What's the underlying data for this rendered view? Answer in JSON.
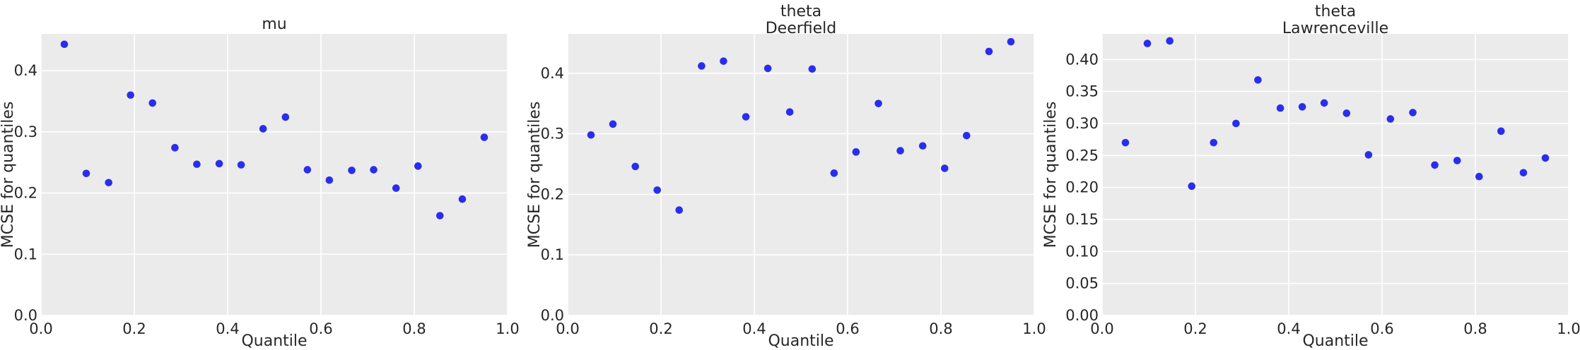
{
  "chart_data": [
    {
      "type": "scatter",
      "title": [
        "mu"
      ],
      "xlabel": "Quantile",
      "ylabel": "MCSE for quantiles",
      "xlim": [
        0,
        1
      ],
      "ylim": [
        0,
        0.46
      ],
      "xticks": [
        "0.0",
        "0.2",
        "0.4",
        "0.6",
        "0.8",
        "1.0"
      ],
      "yticks": [
        "0.0",
        "0.1",
        "0.2",
        "0.3",
        "0.4"
      ],
      "x": [
        0.05,
        0.097,
        0.145,
        0.192,
        0.239,
        0.287,
        0.334,
        0.382,
        0.429,
        0.476,
        0.524,
        0.571,
        0.618,
        0.666,
        0.713,
        0.761,
        0.808,
        0.855,
        0.903,
        0.95
      ],
      "y": [
        0.443,
        0.232,
        0.217,
        0.36,
        0.347,
        0.274,
        0.247,
        0.248,
        0.246,
        0.305,
        0.324,
        0.238,
        0.221,
        0.237,
        0.238,
        0.208,
        0.244,
        0.163,
        0.19,
        0.291
      ],
      "color": "#2a2eec",
      "grid": true
    },
    {
      "type": "scatter",
      "title": [
        "theta",
        "Deerfield"
      ],
      "xlabel": "Quantile",
      "ylabel": "MCSE for quantiles",
      "xlim": [
        0,
        1
      ],
      "ylim": [
        0,
        0.465
      ],
      "xticks": [
        "0.0",
        "0.2",
        "0.4",
        "0.6",
        "0.8",
        "1.0"
      ],
      "yticks": [
        "0.0",
        "0.1",
        "0.2",
        "0.3",
        "0.4"
      ],
      "x": [
        0.05,
        0.097,
        0.145,
        0.192,
        0.239,
        0.287,
        0.334,
        0.382,
        0.429,
        0.476,
        0.524,
        0.571,
        0.618,
        0.666,
        0.713,
        0.761,
        0.808,
        0.855,
        0.903,
        0.95
      ],
      "y": [
        0.298,
        0.316,
        0.246,
        0.207,
        0.174,
        0.412,
        0.42,
        0.328,
        0.408,
        0.336,
        0.407,
        0.235,
        0.27,
        0.35,
        0.272,
        0.28,
        0.243,
        0.297,
        0.436,
        0.452
      ],
      "color": "#2a2eec",
      "grid": true
    },
    {
      "type": "scatter",
      "title": [
        "theta",
        "Lawrenceville"
      ],
      "xlabel": "Quantile",
      "ylabel": "MCSE for quantiles",
      "xlim": [
        0,
        1
      ],
      "ylim": [
        0,
        0.44
      ],
      "xticks": [
        "0.0",
        "0.2",
        "0.4",
        "0.6",
        "0.8",
        "1.0"
      ],
      "yticks": [
        "0.00",
        "0.05",
        "0.10",
        "0.15",
        "0.20",
        "0.25",
        "0.30",
        "0.35",
        "0.40"
      ],
      "x": [
        0.05,
        0.097,
        0.145,
        0.192,
        0.239,
        0.287,
        0.334,
        0.382,
        0.429,
        0.476,
        0.524,
        0.571,
        0.618,
        0.666,
        0.713,
        0.761,
        0.808,
        0.855,
        0.903,
        0.95
      ],
      "y": [
        0.27,
        0.425,
        0.429,
        0.202,
        0.27,
        0.3,
        0.368,
        0.324,
        0.326,
        0.332,
        0.316,
        0.251,
        0.307,
        0.317,
        0.235,
        0.242,
        0.217,
        0.288,
        0.223,
        0.246
      ],
      "color": "#2a2eec",
      "grid": true
    }
  ]
}
